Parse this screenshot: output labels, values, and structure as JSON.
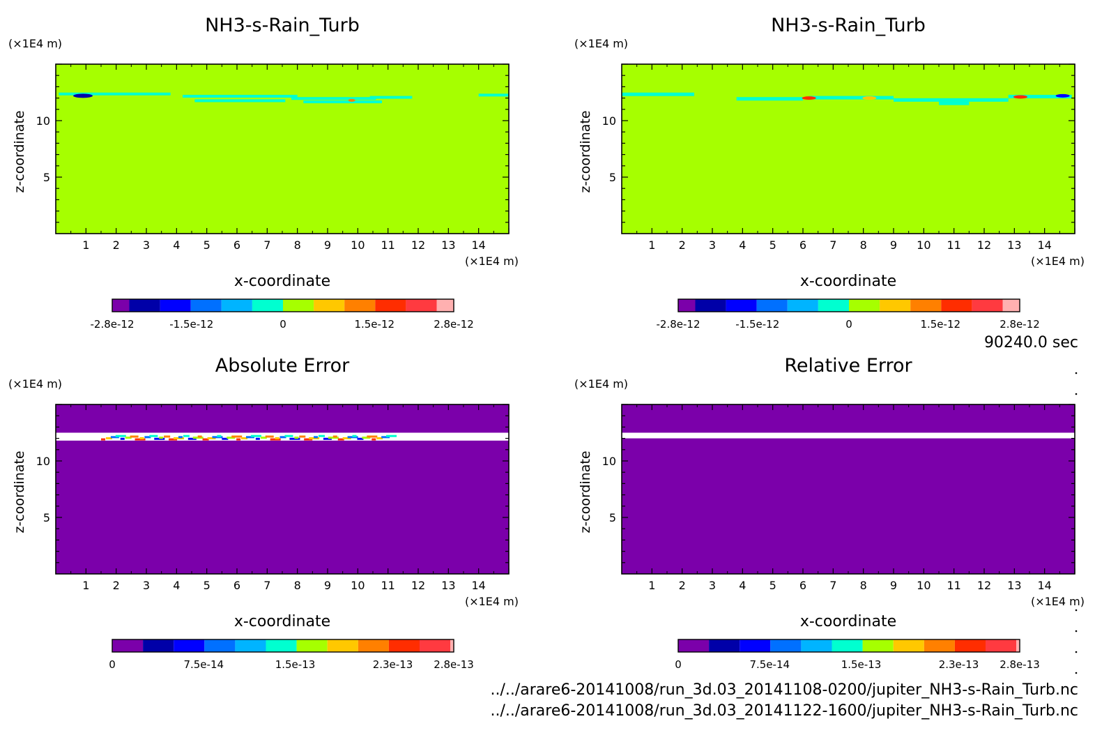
{
  "colors": {
    "background": "#ffffff",
    "plot_field": "#a6ff00",
    "error_field": "#7b00aa",
    "missing": "#ffffff",
    "frame": "#000000",
    "colormap": [
      "#7b00aa",
      "#0000a8",
      "#0000ff",
      "#0070ff",
      "#00b4ff",
      "#00ffd0",
      "#a6ff00",
      "#ffc800",
      "#ff8000",
      "#ff2d00",
      "#ff3a40",
      "#ffb0b0"
    ]
  },
  "time_label": "90240.0 sec",
  "file_paths": [
    "../../arare6-20141008/run_3d.03_20141108-0200/jupiter_NH3-s-Rain_Turb.nc",
    "../../arare6-20141008/run_3d.03_20141122-1600/jupiter_NH3-s-Rain_Turb.nc"
  ],
  "chart_data": [
    {
      "type": "heatmap",
      "title": "NH3-s-Rain_Turb",
      "xlabel": "x-coordinate",
      "ylabel": "z-coordinate",
      "x_unit": "(×1E4 m)",
      "y_unit": "(×1E4 m)",
      "xlim": [
        0,
        15
      ],
      "ylim": [
        0,
        15
      ],
      "xticks": [
        "1",
        "2",
        "3",
        "4",
        "5",
        "6",
        "7",
        "8",
        "9",
        "10",
        "11",
        "12",
        "13",
        "14"
      ],
      "yticks": [
        "5",
        "10"
      ],
      "field": "uniform value 0 with small perturbations near z = 12",
      "colorbar": {
        "min": -2.8e-12,
        "max": 2.8e-12,
        "tick_values": [
          -2.8e-12,
          -1.5e-12,
          0,
          1.5e-12,
          2.8e-12
        ],
        "tick_labels": [
          "-2.8e-12",
          "-1.5e-12",
          "0",
          "1.5e-12",
          "2.8e-12"
        ]
      }
    },
    {
      "type": "heatmap",
      "title": "NH3-s-Rain_Turb",
      "xlabel": "x-coordinate",
      "ylabel": "z-coordinate",
      "x_unit": "(×1E4 m)",
      "y_unit": "(×1E4 m)",
      "xlim": [
        0,
        15
      ],
      "ylim": [
        0,
        15
      ],
      "xticks": [
        "1",
        "2",
        "3",
        "4",
        "5",
        "6",
        "7",
        "8",
        "9",
        "10",
        "11",
        "12",
        "13",
        "14"
      ],
      "yticks": [
        "5",
        "10"
      ],
      "field": "uniform value 0 with small perturbations near z = 12",
      "colorbar": {
        "min": -2.8e-12,
        "max": 2.8e-12,
        "tick_values": [
          -2.8e-12,
          -1.5e-12,
          0,
          1.5e-12,
          2.8e-12
        ],
        "tick_labels": [
          "-2.8e-12",
          "-1.5e-12",
          "0",
          "1.5e-12",
          "2.8e-12"
        ]
      }
    },
    {
      "type": "heatmap",
      "title": "Absolute Error",
      "xlabel": "x-coordinate",
      "ylabel": "z-coordinate",
      "x_unit": "(×1E4 m)",
      "y_unit": "(×1E4 m)",
      "xlim": [
        0,
        15
      ],
      "ylim": [
        0,
        15
      ],
      "xticks": [
        "1",
        "2",
        "3",
        "4",
        "5",
        "6",
        "7",
        "8",
        "9",
        "10",
        "11",
        "12",
        "13",
        "14"
      ],
      "yticks": [
        "5",
        "10"
      ],
      "field": "0 almost everywhere; nonzero errors in a band near z = 12",
      "colorbar": {
        "min": 0,
        "max": 2.8e-13,
        "tick_values": [
          0,
          7.5e-14,
          1.5e-13,
          2.3e-13,
          2.8e-13
        ],
        "tick_labels": [
          "0",
          "7.5e-14",
          "1.5e-13",
          "2.3e-13",
          "2.8e-13"
        ]
      }
    },
    {
      "type": "heatmap",
      "title": "Relative Error",
      "xlabel": "x-coordinate",
      "ylabel": "z-coordinate",
      "x_unit": "(×1E4 m)",
      "y_unit": "(×1E4 m)",
      "xlim": [
        0,
        15
      ],
      "ylim": [
        0,
        15
      ],
      "xticks": [
        "1",
        "2",
        "3",
        "4",
        "5",
        "6",
        "7",
        "8",
        "9",
        "10",
        "11",
        "12",
        "13",
        "14"
      ],
      "yticks": [
        "5",
        "10"
      ],
      "field": "0 everywhere except an undefined (white) band near z = 12",
      "colorbar": {
        "min": 0,
        "max": 2.8e-13,
        "tick_values": [
          0,
          7.5e-14,
          1.5e-13,
          2.3e-13,
          2.8e-13
        ],
        "tick_labels": [
          "0",
          "7.5e-14",
          "1.5e-13",
          "2.3e-13",
          "2.8e-13"
        ]
      }
    }
  ]
}
